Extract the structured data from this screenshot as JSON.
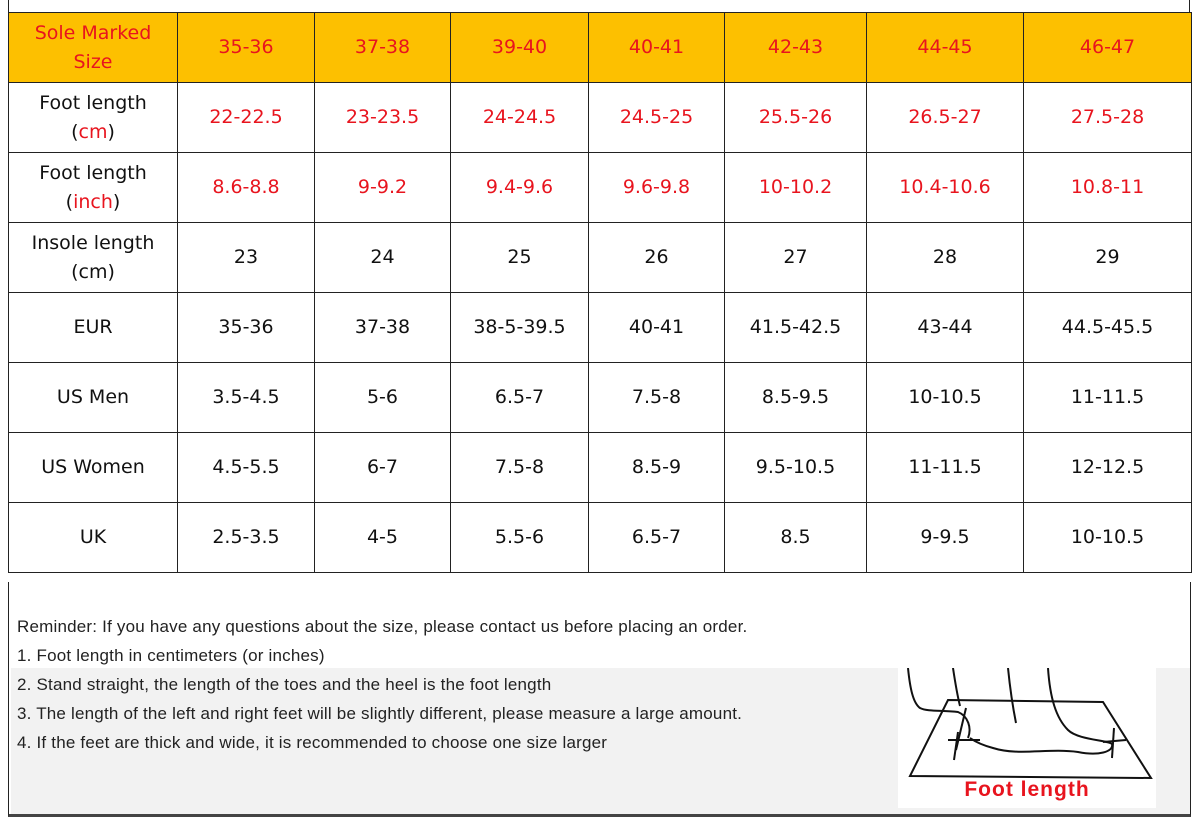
{
  "header": {
    "label": "Sole Marked Size",
    "sizes": [
      "35-36",
      "37-38",
      "39-40",
      "40-41",
      "42-43",
      "44-45",
      "46-47"
    ]
  },
  "rows": [
    {
      "label": "Foot length",
      "unit": "cm",
      "values": [
        "22-22.5",
        "23-23.5",
        "24-24.5",
        "24.5-25",
        "25.5-26",
        "26.5-27",
        "27.5-28"
      ],
      "red": true
    },
    {
      "label": "Foot length",
      "unit": "inch",
      "values": [
        "8.6-8.8",
        "9-9.2",
        "9.4-9.6",
        "9.6-9.8",
        "10-10.2",
        "10.4-10.6",
        "10.8-11"
      ],
      "red": true
    },
    {
      "label": "Insole length",
      "unit": "cm",
      "values": [
        "23",
        "24",
        "25",
        "26",
        "27",
        "28",
        "29"
      ]
    },
    {
      "label": "EUR",
      "values": [
        "35-36",
        "37-38",
        "38-5-39.5",
        "40-41",
        "41.5-42.5",
        "43-44",
        "44.5-45.5"
      ]
    },
    {
      "label": "US Men",
      "values": [
        "3.5-4.5",
        "5-6",
        "6.5-7",
        "7.5-8",
        "8.5-9.5",
        "10-10.5",
        "11-11.5"
      ]
    },
    {
      "label": "US Women",
      "values": [
        "4.5-5.5",
        "6-7",
        "7.5-8",
        "8.5-9",
        "9.5-10.5",
        "11-11.5",
        "12-12.5"
      ]
    },
    {
      "label": "UK",
      "values": [
        "2.5-3.5",
        "4-5",
        "5.5-6",
        "6.5-7",
        "8.5",
        "9-9.5",
        "10-10.5"
      ]
    }
  ],
  "notes": {
    "reminder": "Reminder: If you have any questions about the size, please contact us before placing an order.",
    "items": [
      "1. Foot length in centimeters (or inches)",
      "2. Stand straight, the length of the toes and the heel is the foot length",
      "3. The length of the left and right feet will be slightly different, please measure a large amount.",
      "4. If the feet are thick and wide, it is recommended to choose one size larger"
    ]
  },
  "illustration": {
    "caption": "Foot length",
    "icon": "foot-measuring-icon"
  },
  "colors": {
    "header_bg": "#fdc000",
    "accent_red": "#e8141e"
  }
}
